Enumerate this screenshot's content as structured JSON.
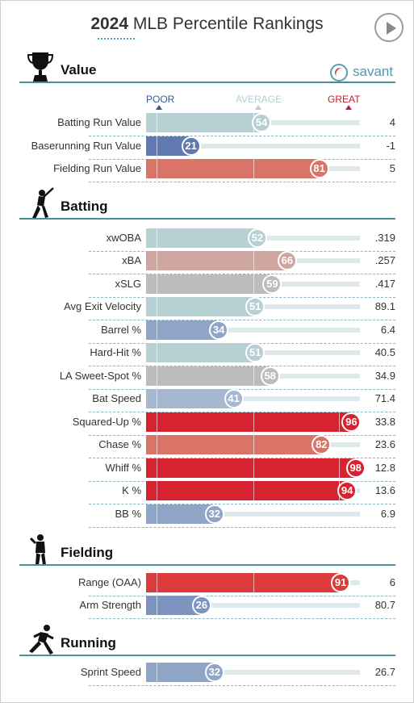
{
  "title": {
    "year": "2024",
    "rest": " MLB Percentile Rankings"
  },
  "brand": "savant",
  "scale": {
    "poor": "POOR",
    "average": "AVERAGE",
    "great": "GREAT",
    "colors": {
      "poor": "#2f5c95",
      "average": "#b9cdd2",
      "great": "#c41d2b"
    }
  },
  "colors": {
    "blue": "#7c94bf",
    "blue_dark": "#6179b1",
    "teal": "#b7d0d3",
    "tan": "#cfa69f",
    "gray": "#bcbcbc",
    "red_soft": "#d97466",
    "red": "#db3b3b",
    "red_deep": "#d7232f"
  },
  "chart_data": {
    "type": "bar",
    "xlim": [
      0,
      100
    ],
    "sections": [
      {
        "name": "Value",
        "icon": "trophy-icon",
        "rows": [
          {
            "label": "Batting Run Value",
            "percentile": 54,
            "value": "4",
            "color": "#b7d0d3"
          },
          {
            "label": "Baserunning Run Value",
            "percentile": 21,
            "value": "-1",
            "color": "#6179b1"
          },
          {
            "label": "Fielding Run Value",
            "percentile": 81,
            "value": "5",
            "color": "#d97466"
          }
        ]
      },
      {
        "name": "Batting",
        "icon": "batter-icon",
        "rows": [
          {
            "label": "xwOBA",
            "percentile": 52,
            "value": ".319",
            "color": "#b7d0d3"
          },
          {
            "label": "xBA",
            "percentile": 66,
            "value": ".257",
            "color": "#cfa69f"
          },
          {
            "label": "xSLG",
            "percentile": 59,
            "value": ".417",
            "color": "#bcbcbc"
          },
          {
            "label": "Avg Exit Velocity",
            "percentile": 51,
            "value": "89.1",
            "color": "#b7d0d3"
          },
          {
            "label": "Barrel %",
            "percentile": 34,
            "value": "6.4",
            "color": "#8fa5c6"
          },
          {
            "label": "Hard-Hit %",
            "percentile": 51,
            "value": "40.5",
            "color": "#b7d0d3"
          },
          {
            "label": "LA Sweet-Spot %",
            "percentile": 58,
            "value": "34.9",
            "color": "#bcbcbc"
          },
          {
            "label": "Bat Speed",
            "percentile": 41,
            "value": "71.4",
            "color": "#a6b8cf"
          },
          {
            "label": "Squared-Up %",
            "percentile": 96,
            "value": "33.8",
            "color": "#d7232f"
          },
          {
            "label": "Chase %",
            "percentile": 82,
            "value": "23.6",
            "color": "#d97466"
          },
          {
            "label": "Whiff %",
            "percentile": 98,
            "value": "12.8",
            "color": "#d7232f"
          },
          {
            "label": "K %",
            "percentile": 94,
            "value": "13.6",
            "color": "#d7232f"
          },
          {
            "label": "BB %",
            "percentile": 32,
            "value": "6.9",
            "color": "#8fa5c6"
          }
        ]
      },
      {
        "name": "Fielding",
        "icon": "fielder-icon",
        "rows": [
          {
            "label": "Range (OAA)",
            "percentile": 91,
            "value": "6",
            "color": "#db3b3b"
          },
          {
            "label": "Arm Strength",
            "percentile": 26,
            "value": "80.7",
            "color": "#7c94bf"
          }
        ]
      },
      {
        "name": "Running",
        "icon": "runner-icon",
        "rows": [
          {
            "label": "Sprint Speed",
            "percentile": 32,
            "value": "26.7",
            "color": "#8fa5c6"
          }
        ]
      }
    ]
  }
}
